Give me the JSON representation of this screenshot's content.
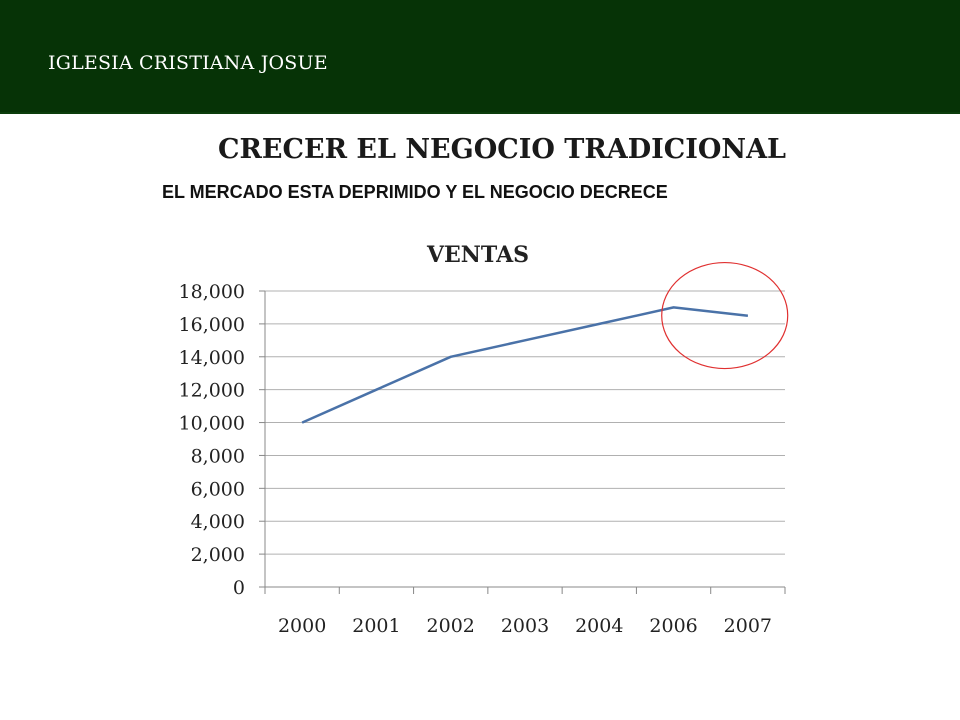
{
  "header": {
    "text": "IGLESIA CRISTIANA JOSUE",
    "background_color": "#063306"
  },
  "slide": {
    "title": "CRECER EL NEGOCIO TRADICIONAL",
    "subtitle": "EL MERCADO ESTA DEPRIMIDO Y EL NEGOCIO DECRECE"
  },
  "chart_data": {
    "type": "line",
    "title": "VENTAS",
    "categories": [
      "2000",
      "2001",
      "2002",
      "2003",
      "2004",
      "2006",
      "2007"
    ],
    "series": [
      {
        "values": [
          10000,
          12000,
          14000,
          15000,
          16000,
          17000,
          16500
        ],
        "color": "#4a72a8"
      }
    ],
    "ylim": [
      0,
      18000
    ],
    "ytick_step": 2000,
    "yticks": [
      "0",
      "2,000",
      "4,000",
      "6,000",
      "8,000",
      "10,000",
      "12,000",
      "14,000",
      "16,000",
      "18,000"
    ],
    "grid": true,
    "legend": "none",
    "annotation": {
      "shape": "circle",
      "highlights_categories": [
        "2006",
        "2007"
      ],
      "color": "#e03030"
    }
  }
}
